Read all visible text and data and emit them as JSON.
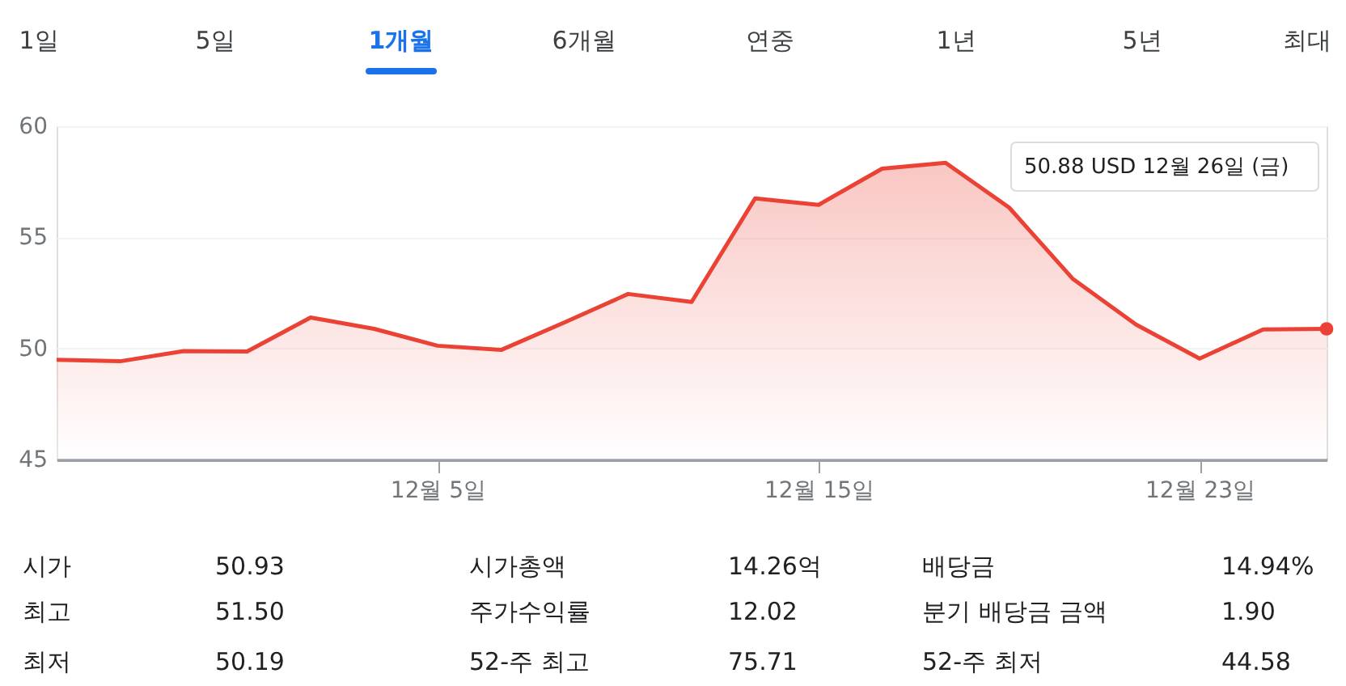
{
  "chart_data": {
    "type": "area",
    "categories": [
      null,
      null,
      null,
      null,
      null,
      null,
      "12월 5일",
      null,
      null,
      null,
      null,
      null,
      "12월 15일",
      null,
      null,
      null,
      null,
      null,
      "12월 23일",
      null,
      null
    ],
    "series": [
      {
        "color": "#ea4335",
        "values": [
          49.49,
          49.42,
          49.88,
          49.86,
          51.39,
          50.88,
          50.12,
          49.93,
          51.17,
          52.45,
          52.09,
          56.75,
          56.46,
          58.09,
          58.35,
          56.34,
          53.14,
          51.07,
          49.54,
          50.85,
          50.88
        ]
      }
    ],
    "ylim": [
      45,
      60
    ],
    "yticks": [
      45,
      50,
      55,
      60
    ],
    "grid": "y",
    "annotations": [
      "1일",
      "5일",
      "1개월",
      "6개월",
      "연중",
      "1년",
      "5년",
      "최대",
      "50.88 USD  12월 26일 (금)",
      "시가",
      "50.93",
      "시가총액",
      "14.26억",
      "배당금",
      "14.94%",
      "최고",
      "51.50",
      "주가수익률",
      "12.02",
      "분기 배당금 금액",
      "1.90",
      "최저",
      "50.19",
      "52-주 최고",
      "75.71",
      "52-주 최저",
      "44.58"
    ]
  }
}
